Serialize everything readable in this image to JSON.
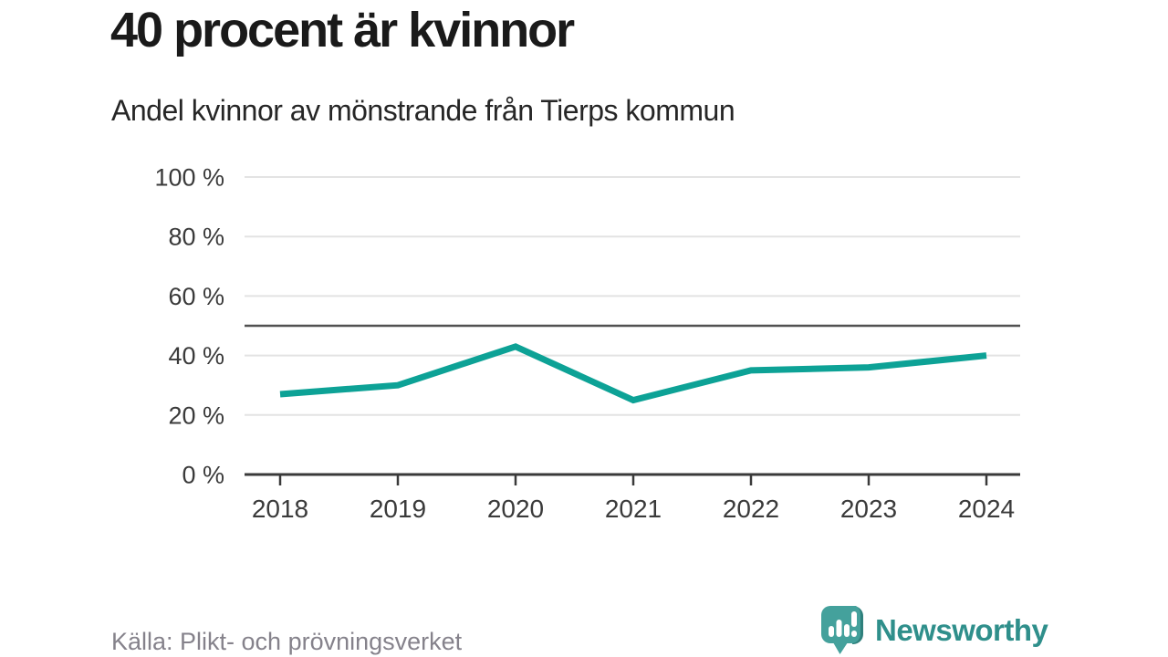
{
  "page": {
    "title": "40 procent är kvinnor",
    "subtitle": "Andel kvinnor av mönstrande från Tierps kommun",
    "source": "Källa: Plikt- och prövningsverket",
    "brand_name": "Newsworthy"
  },
  "colors": {
    "line": "#0da296",
    "grid": "#e3e3e3",
    "reference_line": "#515151",
    "axis": "#3a3a3a",
    "tick_label": "#3a3a3a",
    "title": "#1a1a1a",
    "subtitle": "#262626",
    "source": "#85828b",
    "brand": "#2f8f8b",
    "logo_main": "#44a19c",
    "logo_shade": "#2f807c"
  },
  "chart_data": {
    "type": "line",
    "title": "40 procent är kvinnor",
    "subtitle": "Andel kvinnor av mönstrande från Tierps kommun",
    "x": [
      "2018",
      "2019",
      "2020",
      "2021",
      "2022",
      "2023",
      "2024"
    ],
    "series": [
      {
        "name": "Andel kvinnor av mönstrande",
        "values": [
          27,
          30,
          43,
          25,
          35,
          36,
          40
        ]
      }
    ],
    "unit": "%",
    "xlabel": "",
    "ylabel": "",
    "ylim": [
      0,
      100
    ],
    "yticks": [
      0,
      20,
      40,
      60,
      80,
      100
    ],
    "ytick_suffix": " %",
    "reference_line_y": 50,
    "grid": true,
    "legend_position": "none",
    "source": "Källa: Plikt- och prövningsverket"
  }
}
